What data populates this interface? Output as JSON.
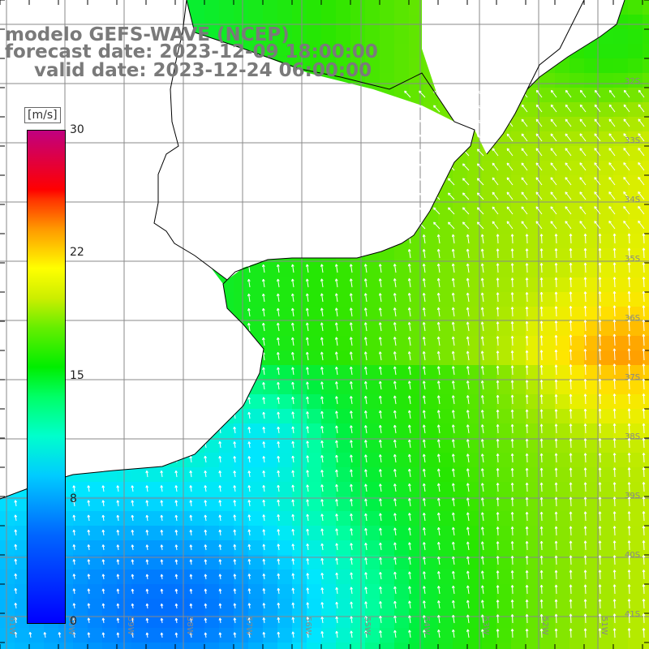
{
  "title": {
    "line1": "modelo GEFS-WAVE (NCEP)",
    "line2": "forecast date: 2023-12-09 18:00:00",
    "line3": "valid date: 2023-12-24 06:00:00"
  },
  "colorbar": {
    "unit": "[m/s]",
    "ticks": [
      {
        "value": 30,
        "label": "30"
      },
      {
        "value": 22,
        "label": "22"
      },
      {
        "value": 15,
        "label": "15"
      },
      {
        "value": 8,
        "label": "8"
      },
      {
        "value": 0,
        "label": "0"
      }
    ],
    "colors": [
      "#0000ff",
      "#00ccff",
      "#00ee00",
      "#ffff00",
      "#ff0000",
      "#c00080"
    ]
  },
  "grid": {
    "lat_labels": [
      "32S",
      "33S",
      "34S",
      "35S",
      "36S",
      "37S",
      "38S",
      "39S",
      "40S",
      "41S"
    ],
    "lon_labels": [
      "61W",
      "60W",
      "59W",
      "58W",
      "57W",
      "56W",
      "55W",
      "54W",
      "53W",
      "52W",
      "51W"
    ]
  },
  "colors": {
    "land": "#ffffff",
    "coast": "#000000",
    "grid": "#8a8a8a",
    "arrows": "#ffffff",
    "title": "#7a7a7a"
  }
}
